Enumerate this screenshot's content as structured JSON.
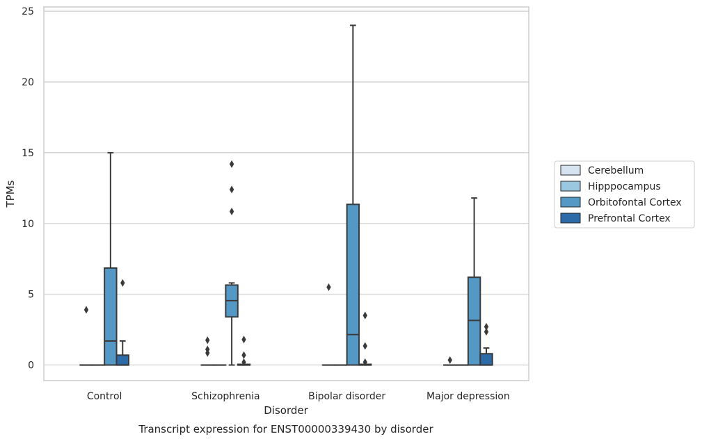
{
  "chart_data": {
    "type": "box",
    "caption": "Transcript expression for ENST00000339430 by disorder",
    "xlabel": "Disorder",
    "ylabel": "TPMs",
    "ylim": [
      -1.1,
      25.3
    ],
    "yticks": [
      0,
      5,
      10,
      15,
      20,
      25
    ],
    "grid": "horizontal",
    "legend_position": "right",
    "categories": [
      "Control",
      "Schizophrenia",
      "Bipolar disorder",
      "Major depression"
    ],
    "series": [
      {
        "name": "Cerebellum",
        "color": "#d6e3f0",
        "boxes": [
          {
            "min": 0,
            "q1": 0,
            "median": 0,
            "q3": 0,
            "max": 0,
            "outliers": [
              3.9
            ]
          },
          {
            "min": 0,
            "q1": 0,
            "median": 0,
            "q3": 0,
            "max": 0,
            "outliers": [
              0.85,
              1.1,
              1.75
            ]
          },
          {
            "min": 0,
            "q1": 0,
            "median": 0,
            "q3": 0,
            "max": 0,
            "outliers": [
              5.5
            ]
          },
          {
            "min": 0,
            "q1": 0,
            "median": 0,
            "q3": 0,
            "max": 0,
            "outliers": [
              0.35
            ]
          }
        ]
      },
      {
        "name": "Hipppocampus",
        "color": "#9ac8e0",
        "boxes": [
          {
            "min": 0,
            "q1": 0,
            "median": 0,
            "q3": 0,
            "max": 0,
            "outliers": []
          },
          {
            "min": 0,
            "q1": 0,
            "median": 0,
            "q3": 0,
            "max": 0,
            "outliers": []
          },
          {
            "min": 0,
            "q1": 0,
            "median": 0,
            "q3": 0,
            "max": 0,
            "outliers": []
          },
          {
            "min": 0,
            "q1": 0,
            "median": 0,
            "q3": 0,
            "max": 0,
            "outliers": []
          }
        ]
      },
      {
        "name": "Orbitofontal Cortex",
        "color": "#5498c6",
        "boxes": [
          {
            "min": 0,
            "q1": 0,
            "median": 1.7,
            "q3": 6.85,
            "max": 15.0,
            "outliers": []
          },
          {
            "min": 0,
            "q1": 3.4,
            "median": 4.55,
            "q3": 5.65,
            "max": 5.8,
            "outliers": [
              10.85,
              12.4,
              14.2
            ]
          },
          {
            "min": 0,
            "q1": 0,
            "median": 2.15,
            "q3": 11.35,
            "max": 24.0,
            "outliers": []
          },
          {
            "min": 0,
            "q1": 0,
            "median": 3.15,
            "q3": 6.2,
            "max": 11.8,
            "outliers": []
          }
        ]
      },
      {
        "name": "Prefrontal Cortex",
        "color": "#2c6aa8",
        "boxes": [
          {
            "min": 0,
            "q1": 0,
            "median": 0,
            "q3": 0.7,
            "max": 1.7,
            "outliers": [
              5.8
            ]
          },
          {
            "min": 0,
            "q1": 0,
            "median": 0,
            "q3": 0.05,
            "max": 0.05,
            "outliers": [
              0.2,
              0.7,
              1.8
            ]
          },
          {
            "min": 0,
            "q1": 0,
            "median": 0,
            "q3": 0.05,
            "max": 0.05,
            "outliers": [
              0.2,
              1.35,
              3.5
            ]
          },
          {
            "min": 0,
            "q1": 0,
            "median": 0,
            "q3": 0.8,
            "max": 1.2,
            "outliers": [
              2.35,
              2.7
            ]
          }
        ]
      }
    ]
  }
}
